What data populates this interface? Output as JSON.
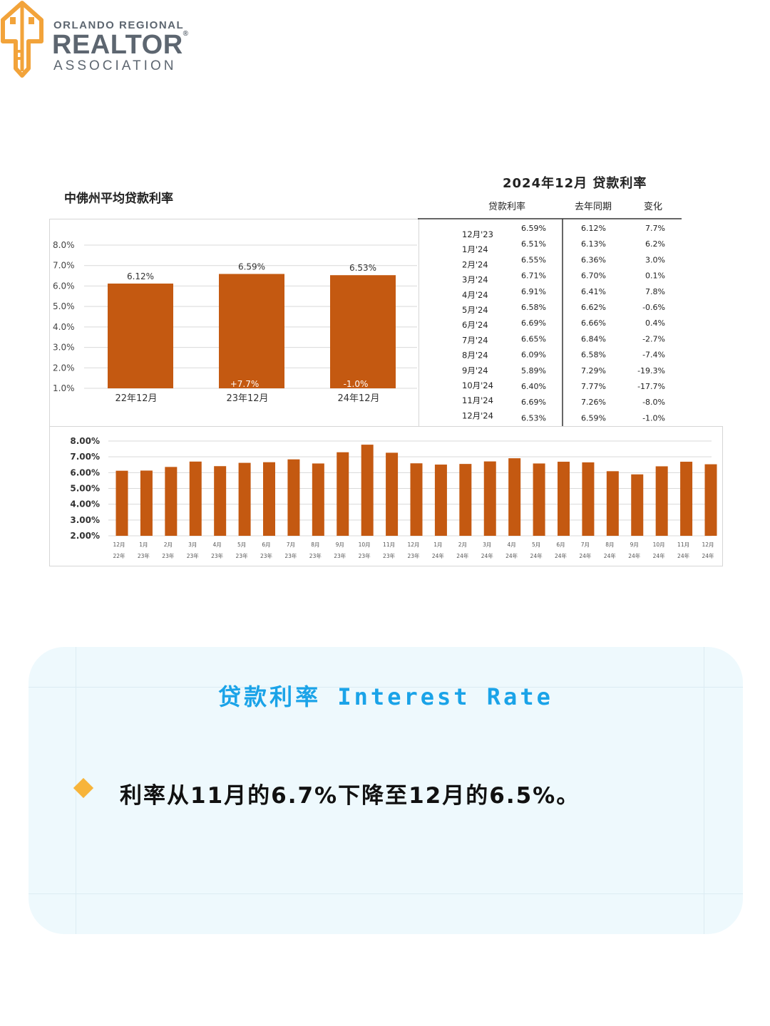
{
  "logo": {
    "line1": "ORLANDO REGIONAL",
    "line2": "REALTOR",
    "reg": "®",
    "line3": "ASSOCIATION"
  },
  "left_title": "中佛州平均贷款利率",
  "right_title": "2024年12月  贷款利率",
  "table": {
    "headers": [
      "贷款利率",
      "去年同期",
      "变化"
    ],
    "rows": [
      {
        "month": "12月'23",
        "rate": "6.59%",
        "last_year": "6.12%",
        "change": "7.7%"
      },
      {
        "month": "1月'24",
        "rate": "6.51%",
        "last_year": "6.13%",
        "change": "6.2%"
      },
      {
        "month": "2月'24",
        "rate": "6.55%",
        "last_year": "6.36%",
        "change": "3.0%"
      },
      {
        "month": "3月'24",
        "rate": "6.71%",
        "last_year": "6.70%",
        "change": "0.1%"
      },
      {
        "month": "4月'24",
        "rate": "6.91%",
        "last_year": "6.41%",
        "change": "7.8%"
      },
      {
        "month": "5月'24",
        "rate": "6.58%",
        "last_year": "6.62%",
        "change": "-0.6%"
      },
      {
        "month": "6月'24",
        "rate": "6.69%",
        "last_year": "6.66%",
        "change": "0.4%"
      },
      {
        "month": "7月'24",
        "rate": "6.65%",
        "last_year": "6.84%",
        "change": "-2.7%"
      },
      {
        "month": "8月'24",
        "rate": "6.09%",
        "last_year": "6.58%",
        "change": "-7.4%"
      },
      {
        "month": "9月'24",
        "rate": "5.89%",
        "last_year": "7.29%",
        "change": "-19.3%"
      },
      {
        "month": "10月'24",
        "rate": "6.40%",
        "last_year": "7.77%",
        "change": "-17.7%"
      },
      {
        "month": "11月'24",
        "rate": "6.69%",
        "last_year": "7.26%",
        "change": "-8.0%"
      },
      {
        "month": "12月'24",
        "rate": "6.53%",
        "last_year": "6.59%",
        "change": "-1.0%"
      }
    ]
  },
  "card": {
    "title": "贷款利率 Interest Rate",
    "text": "利率从11月的6.7%下降至12月的6.5%。"
  },
  "colors": {
    "bar": "#c45911",
    "card_title": "#1aa3e8",
    "card_bg": "#eef9fd",
    "bullet": "#f7b43a"
  },
  "chart_data": [
    {
      "type": "bar",
      "categories": [
        "22年12月",
        "23年12月",
        "24年12月"
      ],
      "values": [
        6.12,
        6.59,
        6.53
      ],
      "value_labels": [
        "6.12%",
        "6.59%",
        "6.53%"
      ],
      "change_labels": [
        "",
        "+7.7%",
        "-1.0%"
      ],
      "yticks": [
        "8.0%",
        "7.0%",
        "6.0%",
        "5.0%",
        "4.0%",
        "3.0%",
        "2.0%",
        "1.0%"
      ],
      "ylim": [
        1.0,
        8.0
      ],
      "grid": true
    },
    {
      "type": "bar",
      "categories": [
        [
          "12月",
          "22年"
        ],
        [
          "1月",
          "23年"
        ],
        [
          "2月",
          "23年"
        ],
        [
          "3月",
          "23年"
        ],
        [
          "4月",
          "23年"
        ],
        [
          "5月",
          "23年"
        ],
        [
          "6月",
          "23年"
        ],
        [
          "7月",
          "23年"
        ],
        [
          "8月",
          "23年"
        ],
        [
          "9月",
          "23年"
        ],
        [
          "10月",
          "23年"
        ],
        [
          "11月",
          "23年"
        ],
        [
          "12月",
          "23年"
        ],
        [
          "1月",
          "24年"
        ],
        [
          "2月",
          "24年"
        ],
        [
          "3月",
          "24年"
        ],
        [
          "4月",
          "24年"
        ],
        [
          "5月",
          "24年"
        ],
        [
          "6月",
          "24年"
        ],
        [
          "7月",
          "24年"
        ],
        [
          "8月",
          "24年"
        ],
        [
          "9月",
          "24年"
        ],
        [
          "10月",
          "24年"
        ],
        [
          "11月",
          "24年"
        ],
        [
          "12月",
          "24年"
        ]
      ],
      "values": [
        6.12,
        6.13,
        6.36,
        6.7,
        6.41,
        6.62,
        6.66,
        6.84,
        6.58,
        7.29,
        7.77,
        7.26,
        6.59,
        6.51,
        6.55,
        6.71,
        6.91,
        6.58,
        6.69,
        6.65,
        6.09,
        5.89,
        6.4,
        6.69,
        6.53
      ],
      "yticks": [
        "8.00%",
        "7.00%",
        "6.00%",
        "5.00%",
        "4.00%",
        "3.00%",
        "2.00%"
      ],
      "ylim": [
        2.0,
        8.0
      ],
      "grid": true
    }
  ]
}
